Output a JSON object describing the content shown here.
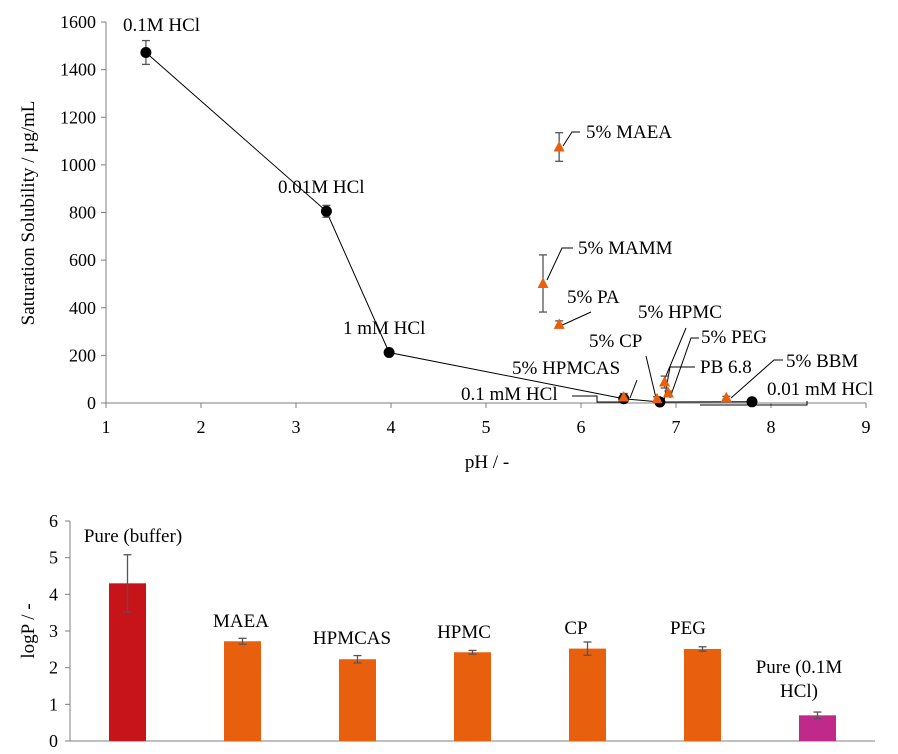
{
  "colors": {
    "black_marker": "#000000",
    "orange": "#E8600E",
    "red": "#C7141A",
    "magenta": "#C0288A",
    "axis": "#7f7f7f",
    "errorbar": "#555555"
  },
  "chart_data": [
    {
      "type": "scatter",
      "xlabel": "pH / -",
      "ylabel": "Saturation Solubility / µg/mL",
      "xlim": [
        1,
        9
      ],
      "ylim": [
        0,
        1600
      ],
      "xticks": [
        1,
        2,
        3,
        4,
        5,
        6,
        7,
        8,
        9
      ],
      "yticks": [
        0,
        200,
        400,
        600,
        800,
        1000,
        1200,
        1400,
        1600
      ],
      "grid": false,
      "series": [
        {
          "marker": "circle",
          "color": "#000000",
          "connected": true,
          "points": [
            {
              "label": "0.1M HCl",
              "x": 1.42,
              "y": 1472,
              "err": 50
            },
            {
              "label": "0.01M HCl",
              "x": 3.32,
              "y": 805,
              "err": 25
            },
            {
              "label": "1 mM HCl",
              "x": 3.98,
              "y": 212,
              "err": 0
            },
            {
              "label": "0.1 mM HCl",
              "x": 6.45,
              "y": 18,
              "err": 0
            },
            {
              "label": "PB 6.8",
              "x": 6.83,
              "y": 4,
              "err": 0
            },
            {
              "label": "0.01 mM HCl",
              "x": 7.8,
              "y": 5,
              "err": 0
            }
          ]
        },
        {
          "marker": "triangle",
          "color": "#E8600E",
          "connected": false,
          "points": [
            {
              "label": "5% MAEA",
              "x": 5.77,
              "y": 1075,
              "err": 60
            },
            {
              "label": "5% MAMM",
              "x": 5.6,
              "y": 502,
              "err": 120
            },
            {
              "label": "5% PA",
              "x": 5.77,
              "y": 330,
              "err": 15
            },
            {
              "label": "5% HPMCAS",
              "x": 6.45,
              "y": 25,
              "err": 15
            },
            {
              "label": "5% CP",
              "x": 6.8,
              "y": 18,
              "err": 8
            },
            {
              "label": "5% HPMC",
              "x": 6.88,
              "y": 88,
              "err": 25
            },
            {
              "label": "5% PEG",
              "x": 6.92,
              "y": 42,
              "err": 8
            },
            {
              "label": "5% BBM",
              "x": 7.53,
              "y": 22,
              "err": 6
            }
          ]
        }
      ]
    },
    {
      "type": "bar",
      "ylabel": "logP / -",
      "ylim": [
        0,
        6
      ],
      "yticks": [
        0,
        1,
        2,
        3,
        4,
        5,
        6
      ],
      "grid": false,
      "categories": [
        "Pure (buffer)",
        "MAEA",
        "HPMCAS",
        "HPMC",
        "CP",
        "PEG",
        "Pure (0.1M HCl)"
      ],
      "values": [
        4.3,
        2.72,
        2.23,
        2.42,
        2.52,
        2.51,
        0.7
      ],
      "errors": [
        0.78,
        0.08,
        0.1,
        0.05,
        0.18,
        0.06,
        0.09
      ],
      "colors": [
        "#C7141A",
        "#E8600E",
        "#E8600E",
        "#E8600E",
        "#E8600E",
        "#E8600E",
        "#C0288A"
      ]
    }
  ]
}
